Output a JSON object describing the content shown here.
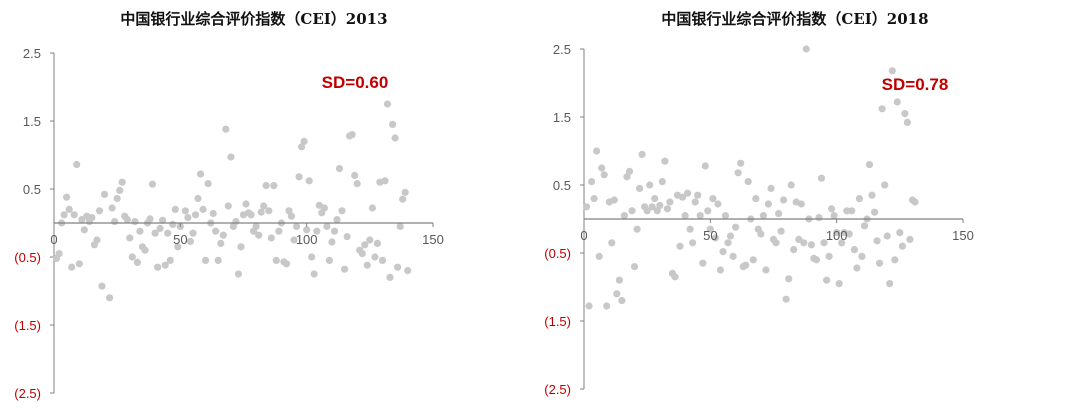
{
  "colors": {
    "point": "#c8c8c8",
    "axis": "#808080",
    "negative_label": "#c00000",
    "sd_label": "#c00000"
  },
  "chart_data": [
    {
      "type": "scatter",
      "title": "中国银行业综合评价指数（CEI）2013",
      "annotation": "SD=0.60",
      "xlim": [
        0,
        150
      ],
      "ylim": [
        -2.5,
        2.5
      ],
      "x_ticks": [
        "0",
        "50",
        "100",
        "150"
      ],
      "y_ticks": [
        {
          "value": 2.5,
          "label": "2.5"
        },
        {
          "value": 1.5,
          "label": "1.5"
        },
        {
          "value": 0.5,
          "label": "0.5"
        },
        {
          "value": -0.5,
          "label": "(0.5)"
        },
        {
          "value": -1.5,
          "label": "(1.5)"
        },
        {
          "value": -2.5,
          "label": "(2.5)"
        }
      ],
      "points": [
        [
          1,
          -0.52
        ],
        [
          2,
          -0.45
        ],
        [
          3,
          0.0
        ],
        [
          4,
          0.12
        ],
        [
          5,
          0.38
        ],
        [
          6,
          0.2
        ],
        [
          7,
          -0.65
        ],
        [
          8,
          0.12
        ],
        [
          9,
          0.86
        ],
        [
          10,
          -0.6
        ],
        [
          11,
          0.05
        ],
        [
          12,
          -0.1
        ],
        [
          13,
          0.1
        ],
        [
          14,
          0.02
        ],
        [
          15,
          0.08
        ],
        [
          16,
          -0.32
        ],
        [
          17,
          -0.25
        ],
        [
          18,
          0.18
        ],
        [
          19,
          -0.93
        ],
        [
          20,
          0.42
        ],
        [
          22,
          -1.1
        ],
        [
          23,
          0.22
        ],
        [
          24,
          0.02
        ],
        [
          25,
          0.36
        ],
        [
          26,
          0.48
        ],
        [
          27,
          0.6
        ],
        [
          28,
          0.1
        ],
        [
          29,
          0.05
        ],
        [
          30,
          -0.22
        ],
        [
          31,
          -0.5
        ],
        [
          32,
          0.02
        ],
        [
          33,
          -0.58
        ],
        [
          34,
          -0.12
        ],
        [
          35,
          -0.35
        ],
        [
          36,
          -0.4
        ],
        [
          37,
          0.0
        ],
        [
          38,
          0.06
        ],
        [
          39,
          0.57
        ],
        [
          40,
          -0.15
        ],
        [
          41,
          -0.65
        ],
        [
          42,
          -0.08
        ],
        [
          43,
          0.04
        ],
        [
          44,
          -0.62
        ],
        [
          45,
          -0.15
        ],
        [
          46,
          -0.55
        ],
        [
          47,
          -0.02
        ],
        [
          48,
          0.2
        ],
        [
          49,
          -0.35
        ],
        [
          50,
          -0.05
        ],
        [
          52,
          0.18
        ],
        [
          53,
          0.08
        ],
        [
          54,
          -0.27
        ],
        [
          55,
          -0.15
        ],
        [
          56,
          0.12
        ],
        [
          57,
          0.36
        ],
        [
          58,
          0.72
        ],
        [
          59,
          0.2
        ],
        [
          60,
          -0.55
        ],
        [
          61,
          0.58
        ],
        [
          62,
          0.0
        ],
        [
          63,
          0.14
        ],
        [
          64,
          -0.12
        ],
        [
          65,
          -0.55
        ],
        [
          66,
          -0.3
        ],
        [
          67,
          -0.18
        ],
        [
          68,
          1.38
        ],
        [
          69,
          0.25
        ],
        [
          70,
          0.97
        ],
        [
          71,
          -0.05
        ],
        [
          72,
          0.02
        ],
        [
          73,
          -0.75
        ],
        [
          74,
          -0.35
        ],
        [
          75,
          0.12
        ],
        [
          76,
          0.28
        ],
        [
          77,
          0.15
        ],
        [
          78,
          0.12
        ],
        [
          79,
          -0.12
        ],
        [
          80,
          -0.05
        ],
        [
          81,
          -0.18
        ],
        [
          82,
          0.16
        ],
        [
          83,
          0.25
        ],
        [
          84,
          0.55
        ],
        [
          85,
          0.18
        ],
        [
          86,
          -0.22
        ],
        [
          87,
          0.55
        ],
        [
          88,
          -0.55
        ],
        [
          89,
          -0.12
        ],
        [
          90,
          0.0
        ],
        [
          91,
          -0.57
        ],
        [
          92,
          -0.6
        ],
        [
          93,
          0.18
        ],
        [
          94,
          0.1
        ],
        [
          95,
          -0.25
        ],
        [
          96,
          -0.05
        ],
        [
          97,
          0.68
        ],
        [
          98,
          1.12
        ],
        [
          99,
          1.2
        ],
        [
          100,
          -0.1
        ],
        [
          101,
          0.62
        ],
        [
          102,
          -0.5
        ],
        [
          103,
          -0.75
        ],
        [
          104,
          -0.12
        ],
        [
          105,
          0.26
        ],
        [
          106,
          0.15
        ],
        [
          107,
          0.22
        ],
        [
          108,
          -0.05
        ],
        [
          109,
          -0.55
        ],
        [
          110,
          -0.28
        ],
        [
          111,
          -0.12
        ],
        [
          112,
          0.05
        ],
        [
          113,
          0.8
        ],
        [
          114,
          0.18
        ],
        [
          115,
          -0.68
        ],
        [
          116,
          -0.2
        ],
        [
          117,
          1.28
        ],
        [
          118,
          1.3
        ],
        [
          119,
          0.7
        ],
        [
          120,
          0.58
        ],
        [
          121,
          -0.4
        ],
        [
          122,
          -0.45
        ],
        [
          123,
          -0.32
        ],
        [
          124,
          -0.62
        ],
        [
          125,
          -0.25
        ],
        [
          126,
          0.22
        ],
        [
          127,
          -0.5
        ],
        [
          128,
          -0.3
        ],
        [
          129,
          0.6
        ],
        [
          130,
          -0.55
        ],
        [
          131,
          0.62
        ],
        [
          132,
          1.75
        ],
        [
          133,
          -0.8
        ],
        [
          134,
          1.45
        ],
        [
          135,
          1.25
        ],
        [
          136,
          -0.65
        ],
        [
          137,
          -0.05
        ],
        [
          138,
          0.35
        ],
        [
          139,
          0.45
        ],
        [
          140,
          -0.7
        ]
      ]
    },
    {
      "type": "scatter",
      "title": "中国银行业综合评价指数（CEI）2018",
      "annotation": "SD=0.78",
      "xlim": [
        0,
        150
      ],
      "ylim": [
        -2.5,
        2.5
      ],
      "x_ticks": [
        "0",
        "50",
        "100",
        "150"
      ],
      "y_ticks": [
        {
          "value": 2.5,
          "label": "2.5"
        },
        {
          "value": 1.5,
          "label": "1.5"
        },
        {
          "value": 0.5,
          "label": "0.5"
        },
        {
          "value": -0.5,
          "label": "(0.5)"
        },
        {
          "value": -1.5,
          "label": "(1.5)"
        },
        {
          "value": -2.5,
          "label": "(2.5)"
        }
      ],
      "points": [
        [
          1,
          0.18
        ],
        [
          2,
          -1.28
        ],
        [
          3,
          0.55
        ],
        [
          4,
          0.3
        ],
        [
          5,
          1.0
        ],
        [
          6,
          -0.55
        ],
        [
          7,
          0.75
        ],
        [
          8,
          0.65
        ],
        [
          9,
          -1.28
        ],
        [
          10,
          0.25
        ],
        [
          11,
          -0.35
        ],
        [
          12,
          0.28
        ],
        [
          13,
          -1.1
        ],
        [
          14,
          -0.9
        ],
        [
          15,
          -1.2
        ],
        [
          16,
          0.05
        ],
        [
          17,
          0.62
        ],
        [
          18,
          0.7
        ],
        [
          19,
          0.12
        ],
        [
          20,
          -0.7
        ],
        [
          21,
          -0.15
        ],
        [
          22,
          0.45
        ],
        [
          23,
          0.95
        ],
        [
          24,
          0.18
        ],
        [
          25,
          0.12
        ],
        [
          26,
          0.5
        ],
        [
          27,
          0.18
        ],
        [
          28,
          0.3
        ],
        [
          29,
          0.12
        ],
        [
          30,
          0.2
        ],
        [
          31,
          0.55
        ],
        [
          32,
          0.85
        ],
        [
          33,
          0.15
        ],
        [
          34,
          0.25
        ],
        [
          35,
          -0.8
        ],
        [
          36,
          -0.85
        ],
        [
          37,
          0.35
        ],
        [
          38,
          -0.4
        ],
        [
          39,
          0.32
        ],
        [
          40,
          0.05
        ],
        [
          41,
          0.38
        ],
        [
          42,
          -0.15
        ],
        [
          43,
          -0.35
        ],
        [
          44,
          0.25
        ],
        [
          45,
          0.35
        ],
        [
          46,
          0.05
        ],
        [
          47,
          -0.65
        ],
        [
          48,
          0.78
        ],
        [
          49,
          0.12
        ],
        [
          50,
          -0.15
        ],
        [
          51,
          0.3
        ],
        [
          52,
          -0.28
        ],
        [
          53,
          0.22
        ],
        [
          54,
          -0.75
        ],
        [
          55,
          -0.48
        ],
        [
          56,
          0.05
        ],
        [
          57,
          -0.35
        ],
        [
          58,
          -0.25
        ],
        [
          59,
          -0.55
        ],
        [
          60,
          -0.12
        ],
        [
          61,
          0.68
        ],
        [
          62,
          0.82
        ],
        [
          63,
          -0.7
        ],
        [
          64,
          -0.68
        ],
        [
          65,
          0.55
        ],
        [
          66,
          0.0
        ],
        [
          67,
          -0.6
        ],
        [
          68,
          0.3
        ],
        [
          69,
          -0.15
        ],
        [
          70,
          -0.22
        ],
        [
          71,
          0.05
        ],
        [
          72,
          -0.75
        ],
        [
          73,
          0.22
        ],
        [
          74,
          0.45
        ],
        [
          75,
          -0.3
        ],
        [
          76,
          -0.35
        ],
        [
          77,
          0.08
        ],
        [
          78,
          -0.18
        ],
        [
          79,
          0.28
        ],
        [
          80,
          -1.18
        ],
        [
          81,
          -0.88
        ],
        [
          82,
          0.5
        ],
        [
          83,
          -0.45
        ],
        [
          84,
          0.25
        ],
        [
          85,
          -0.3
        ],
        [
          86,
          0.22
        ],
        [
          87,
          -0.35
        ],
        [
          88,
          2.5
        ],
        [
          89,
          0.0
        ],
        [
          90,
          -0.38
        ],
        [
          91,
          -0.58
        ],
        [
          92,
          -0.6
        ],
        [
          93,
          0.02
        ],
        [
          94,
          0.6
        ],
        [
          95,
          -0.35
        ],
        [
          96,
          -0.9
        ],
        [
          97,
          -0.55
        ],
        [
          98,
          0.15
        ],
        [
          99,
          0.05
        ],
        [
          100,
          -0.2
        ],
        [
          101,
          -0.95
        ],
        [
          102,
          -0.35
        ],
        [
          103,
          -0.2
        ],
        [
          104,
          0.12
        ],
        [
          105,
          -0.22
        ],
        [
          106,
          0.12
        ],
        [
          107,
          -0.45
        ],
        [
          108,
          -0.72
        ],
        [
          109,
          0.3
        ],
        [
          110,
          -0.55
        ],
        [
          111,
          -0.1
        ],
        [
          112,
          0.0
        ],
        [
          113,
          0.8
        ],
        [
          114,
          0.35
        ],
        [
          115,
          0.1
        ],
        [
          116,
          -0.32
        ],
        [
          117,
          -0.65
        ],
        [
          118,
          1.62
        ],
        [
          119,
          0.5
        ],
        [
          120,
          -0.25
        ],
        [
          121,
          -0.95
        ],
        [
          122,
          2.18
        ],
        [
          123,
          -0.6
        ],
        [
          124,
          1.72
        ],
        [
          125,
          -0.2
        ],
        [
          126,
          -0.4
        ],
        [
          127,
          1.55
        ],
        [
          128,
          1.42
        ],
        [
          129,
          -0.3
        ],
        [
          130,
          0.28
        ],
        [
          131,
          0.25
        ]
      ]
    }
  ]
}
